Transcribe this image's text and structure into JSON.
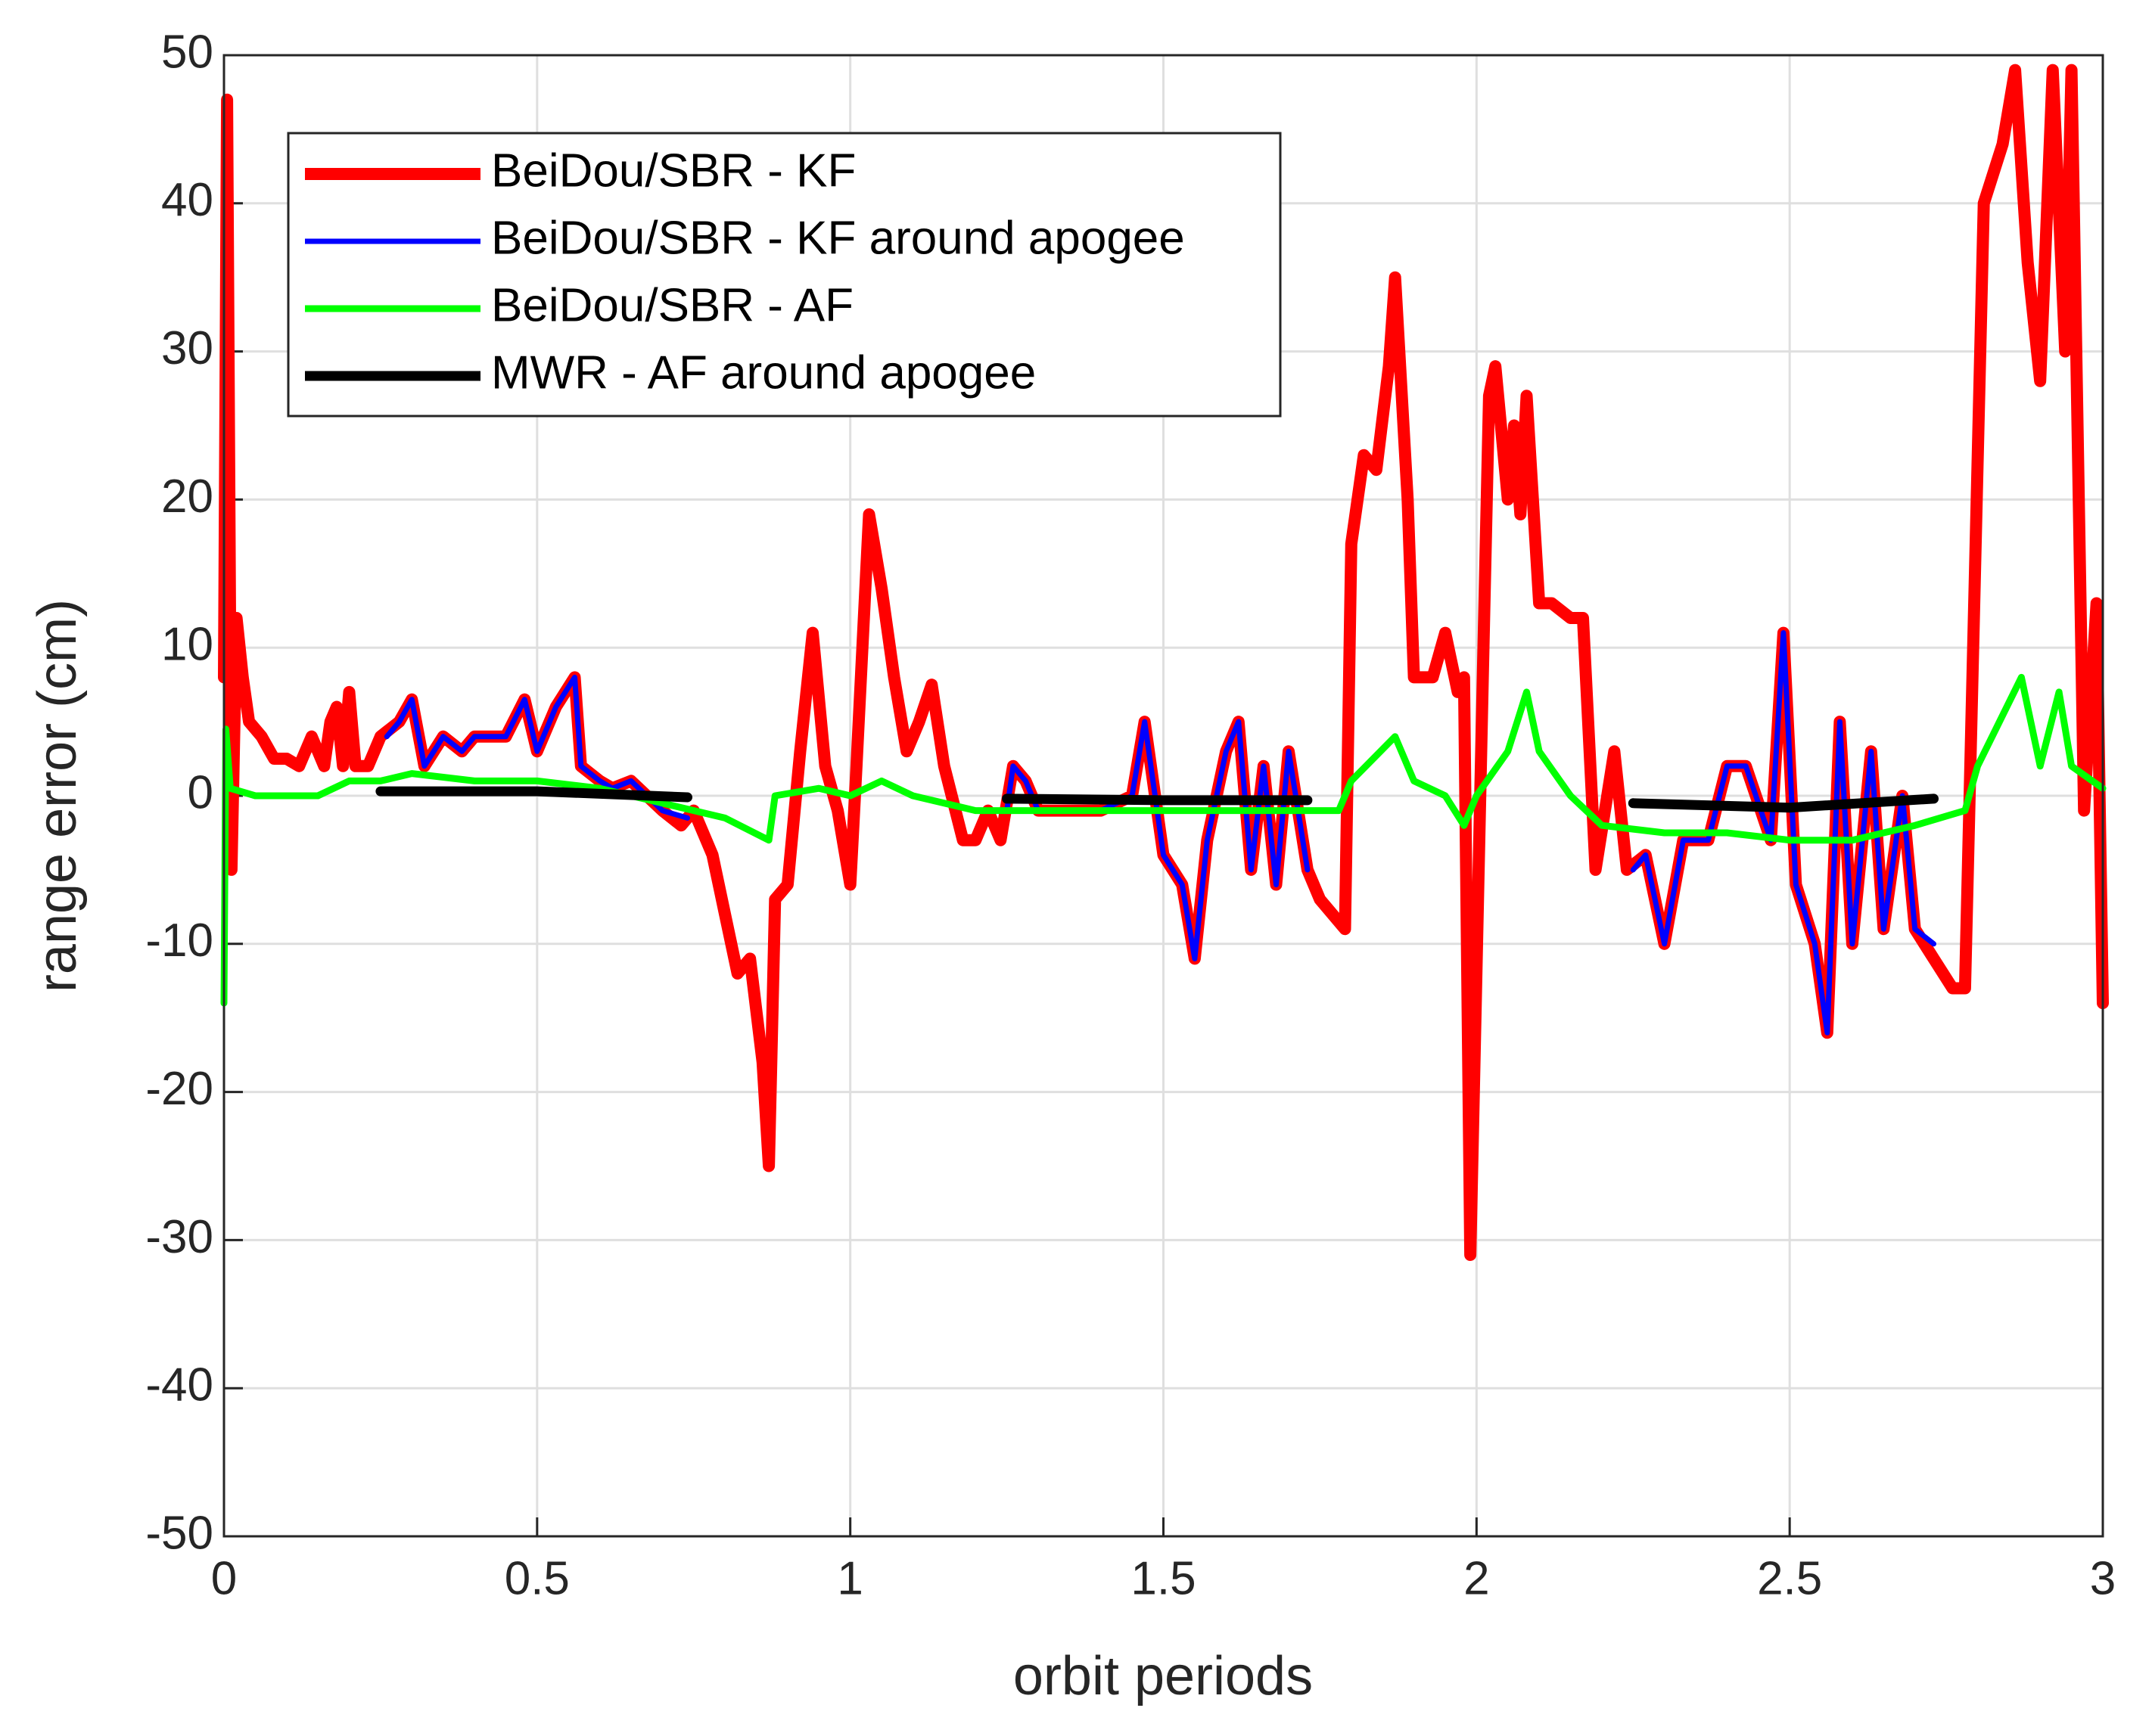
{
  "chart_data": {
    "type": "line",
    "xlabel": "orbit periods",
    "ylabel": "range error (cm)",
    "xlim": [
      0,
      3
    ],
    "ylim": [
      -50,
      50
    ],
    "xticks": [
      0,
      0.5,
      1,
      1.5,
      2,
      2.5,
      3
    ],
    "yticks": [
      -50,
      -40,
      -30,
      -20,
      -10,
      0,
      10,
      20,
      30,
      40,
      50
    ],
    "grid": true,
    "legend": "upper left",
    "series": [
      {
        "name": "BeiDou/SBR - KF",
        "color": "#ff0000",
        "x": [
          0,
          0.005,
          0.012,
          0.02,
          0.03,
          0.04,
          0.06,
          0.08,
          0.1,
          0.12,
          0.14,
          0.16,
          0.17,
          0.18,
          0.19,
          0.2,
          0.21,
          0.23,
          0.25,
          0.28,
          0.3,
          0.32,
          0.35,
          0.38,
          0.4,
          0.45,
          0.48,
          0.5,
          0.53,
          0.56,
          0.57,
          0.6,
          0.62,
          0.65,
          0.7,
          0.73,
          0.75,
          0.78,
          0.8,
          0.82,
          0.84,
          0.86,
          0.87,
          0.88,
          0.9,
          0.92,
          0.94,
          0.96,
          0.98,
          1.0,
          1.01,
          1.03,
          1.05,
          1.07,
          1.09,
          1.11,
          1.13,
          1.15,
          1.18,
          1.2,
          1.22,
          1.24,
          1.26,
          1.28,
          1.3,
          1.35,
          1.4,
          1.45,
          1.47,
          1.5,
          1.53,
          1.55,
          1.57,
          1.6,
          1.62,
          1.64,
          1.66,
          1.68,
          1.7,
          1.73,
          1.75,
          1.79,
          1.8,
          1.82,
          1.84,
          1.86,
          1.87,
          1.89,
          1.9,
          1.93,
          1.95,
          1.97,
          1.98,
          1.99,
          2.01,
          2.02,
          2.03,
          2.05,
          2.06,
          2.07,
          2.08,
          2.1,
          2.12,
          2.15,
          2.17,
          2.19,
          2.22,
          2.24,
          2.27,
          2.3,
          2.33,
          2.37,
          2.4,
          2.43,
          2.47,
          2.49,
          2.51,
          2.54,
          2.56,
          2.58,
          2.6,
          2.63,
          2.65,
          2.68,
          2.7,
          2.73,
          2.76,
          2.78,
          2.81,
          2.84,
          2.86,
          2.88,
          2.9,
          2.92,
          2.94,
          2.95,
          2.97,
          2.99,
          3.0
        ],
        "values": [
          8,
          47,
          -5,
          12,
          8,
          5,
          4,
          2.5,
          2.5,
          2,
          4,
          2,
          5,
          6,
          2,
          7,
          2,
          2,
          4,
          5,
          6.5,
          2,
          4,
          3,
          4,
          4,
          6.5,
          3,
          6,
          8,
          2,
          1,
          0.5,
          1,
          -1,
          -2,
          -1,
          -4,
          -8,
          -12,
          -11,
          -18,
          -25,
          -7,
          -6,
          3,
          11,
          2,
          -1,
          -6,
          2,
          19,
          14,
          8,
          3,
          5,
          7.5,
          2,
          -3,
          -3,
          -1,
          -3,
          2,
          1,
          -1,
          -1,
          -1,
          0,
          5,
          -4,
          -6,
          -11,
          -3,
          3,
          5,
          -5,
          2,
          -6,
          3,
          -5,
          -7,
          -9,
          17,
          23,
          22,
          29,
          35,
          20,
          8,
          8,
          11,
          7,
          8,
          -31,
          8,
          27,
          29,
          20,
          25,
          19,
          27,
          13,
          13,
          12,
          12,
          -5,
          3,
          -5,
          -4,
          -10,
          -3,
          -3,
          2,
          2,
          -3,
          11,
          -6,
          -10,
          -16,
          5,
          -10,
          3,
          -9,
          0,
          -9,
          -11,
          -13,
          -13,
          40,
          44,
          49,
          36,
          28,
          49,
          30,
          49,
          -1,
          13,
          -14
        ]
      },
      {
        "name": "BeiDou/SBR - KF around apogee",
        "color": "#0000ff",
        "x": [
          0.26,
          0.28,
          0.3,
          0.32,
          0.35,
          0.38,
          0.4,
          0.45,
          0.48,
          0.5,
          0.53,
          0.56,
          0.57,
          0.6,
          0.62,
          0.65,
          0.7,
          0.74,
          null,
          1.25,
          1.26,
          1.28,
          1.3,
          1.35,
          1.4,
          1.45,
          1.47,
          1.5,
          1.53,
          1.55,
          1.57,
          1.6,
          1.62,
          1.64,
          1.66,
          1.68,
          1.7,
          1.73,
          null,
          2.25,
          2.27,
          2.3,
          2.33,
          2.37,
          2.4,
          2.43,
          2.47,
          2.49,
          2.51,
          2.54,
          2.56,
          2.58,
          2.6,
          2.63,
          2.65,
          2.68,
          2.7,
          2.73
        ],
        "values": [
          4,
          5,
          6.5,
          2,
          4,
          3,
          4,
          4,
          6.5,
          3,
          6,
          8,
          2,
          1,
          0.5,
          1,
          -1,
          -1.5,
          null,
          -1,
          2,
          1,
          -1,
          -1,
          -1,
          0,
          5,
          -4,
          -6,
          -11,
          -3,
          3,
          5,
          -5,
          2,
          -6,
          3,
          -5,
          null,
          -5,
          -4,
          -10,
          -3,
          -3,
          2,
          2,
          -3,
          11,
          -6,
          -10,
          -16,
          5,
          -10,
          3,
          -9,
          0,
          -9,
          -10
        ]
      },
      {
        "name": "BeiDou/SBR - AF",
        "color": "#00ff00",
        "x": [
          0,
          0.003,
          0.01,
          0.05,
          0.15,
          0.2,
          0.25,
          0.3,
          0.4,
          0.5,
          0.6,
          0.7,
          0.8,
          0.87,
          0.88,
          0.95,
          1.0,
          1.05,
          1.1,
          1.2,
          1.3,
          1.4,
          1.5,
          1.6,
          1.7,
          1.78,
          1.8,
          1.87,
          1.9,
          1.95,
          1.98,
          2.0,
          2.05,
          2.08,
          2.1,
          2.15,
          2.2,
          2.3,
          2.4,
          2.5,
          2.6,
          2.7,
          2.78,
          2.8,
          2.87,
          2.9,
          2.93,
          2.95,
          3.0
        ],
        "values": [
          -14,
          4.5,
          0.5,
          0,
          0,
          1,
          1,
          1.5,
          1,
          1,
          0.5,
          -0.5,
          -1.5,
          -3,
          0,
          0.5,
          0,
          1,
          0,
          -1,
          -1,
          -1,
          -1,
          -1,
          -1,
          -1,
          1,
          4,
          1,
          0,
          -2,
          0,
          3,
          7,
          3,
          0,
          -2,
          -2.5,
          -2.5,
          -3,
          -3,
          -2,
          -1,
          2,
          8,
          2,
          7,
          2,
          0.5
        ]
      },
      {
        "name": "MWR - AF around apogee",
        "color": "#000000",
        "x": [
          0.25,
          0.5,
          0.74,
          null,
          1.25,
          1.5,
          1.73,
          null,
          2.25,
          2.5,
          2.73
        ],
        "values": [
          0.3,
          0.3,
          -0.1,
          null,
          -0.2,
          -0.3,
          -0.3,
          null,
          -0.5,
          -0.8,
          -0.2
        ]
      }
    ]
  }
}
